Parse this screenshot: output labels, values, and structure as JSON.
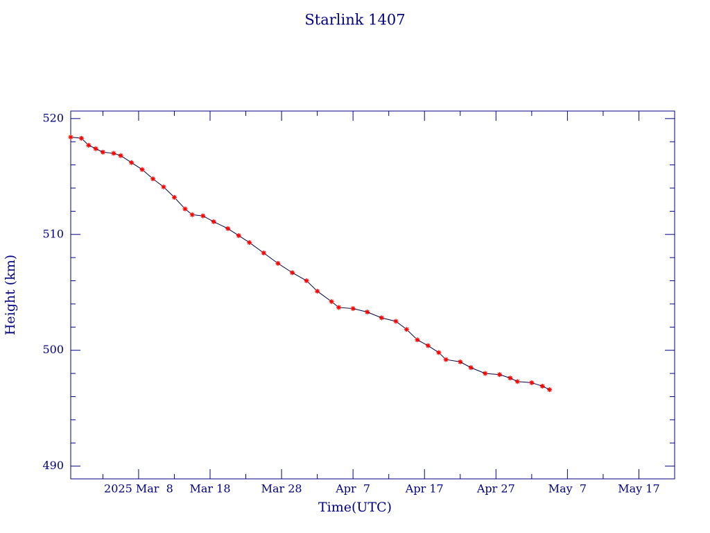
{
  "chart_data": {
    "type": "line",
    "title": "Starlink 1407",
    "xlabel": "Time(UTC)",
    "ylabel": "Height (km)",
    "xlim": [
      "2025-02-26T12:00",
      "2025-05-22T00:00"
    ],
    "xticks": [
      {
        "value": "2025-03-08T00:00",
        "label": "2025 Mar  8"
      },
      {
        "value": "2025-03-18T00:00",
        "label": "Mar 18"
      },
      {
        "value": "2025-03-28T00:00",
        "label": "Mar 28"
      },
      {
        "value": "2025-04-07T00:00",
        "label": "Apr  7"
      },
      {
        "value": "2025-04-17T00:00",
        "label": "Apr 17"
      },
      {
        "value": "2025-04-27T00:00",
        "label": "Apr 27"
      },
      {
        "value": "2025-05-07T00:00",
        "label": "May  7"
      },
      {
        "value": "2025-05-17T00:00",
        "label": "May 17"
      }
    ],
    "xminorticks": [
      "2025-03-03T00:00",
      "2025-03-13T00:00",
      "2025-03-23T00:00",
      "2025-04-02T00:00",
      "2025-04-12T00:00",
      "2025-04-22T00:00",
      "2025-05-02T00:00",
      "2025-05-12T00:00"
    ],
    "ylim": [
      488.9,
      520.65
    ],
    "yticks": [
      490,
      500,
      510,
      520
    ],
    "yminorticks": [
      492,
      494,
      496,
      498,
      502,
      504,
      506,
      508,
      512,
      514,
      516,
      518
    ],
    "axis_color": "#000080",
    "series": [
      {
        "color": "#ff0000",
        "line_color": "#000040",
        "x": [
          "2025-02-26T12:00",
          "2025-02-28T00:00",
          "2025-03-01T00:00",
          "2025-03-02T00:00",
          "2025-03-03T00:00",
          "2025-03-04T12:00",
          "2025-03-05T12:00",
          "2025-03-07T00:00",
          "2025-03-08T12:00",
          "2025-03-10T00:00",
          "2025-03-11T12:00",
          "2025-03-13T00:00",
          "2025-03-14T12:00",
          "2025-03-15T12:00",
          "2025-03-17T00:00",
          "2025-03-18T12:00",
          "2025-03-20T12:00",
          "2025-03-22T00:00",
          "2025-03-23T12:00",
          "2025-03-25T12:00",
          "2025-03-27T12:00",
          "2025-03-29T12:00",
          "2025-03-31T12:00",
          "2025-04-02T00:00",
          "2025-04-04T00:00",
          "2025-04-05T00:00",
          "2025-04-07T00:00",
          "2025-04-09T00:00",
          "2025-04-11T00:00",
          "2025-04-13T00:00",
          "2025-04-14T12:00",
          "2025-04-16T00:00",
          "2025-04-17T12:00",
          "2025-04-19T00:00",
          "2025-04-20T00:00",
          "2025-04-22T00:00",
          "2025-04-23T12:00",
          "2025-04-25T12:00",
          "2025-04-27T12:00",
          "2025-04-29T00:00",
          "2025-04-30T00:00",
          "2025-05-02T00:00",
          "2025-05-03T12:00",
          "2025-05-04T12:00"
        ],
        "values": [
          518.4,
          518.3,
          517.7,
          517.4,
          517.1,
          517.0,
          516.8,
          516.2,
          515.6,
          514.8,
          514.1,
          513.2,
          512.2,
          511.7,
          511.6,
          511.1,
          510.5,
          509.9,
          509.3,
          508.4,
          507.5,
          506.7,
          506.0,
          505.1,
          504.2,
          503.7,
          503.6,
          503.3,
          502.8,
          502.5,
          501.8,
          500.9,
          500.4,
          499.8,
          499.2,
          499.0,
          498.5,
          498.0,
          497.9,
          497.6,
          497.3,
          497.2,
          496.9,
          496.6
        ]
      }
    ]
  }
}
